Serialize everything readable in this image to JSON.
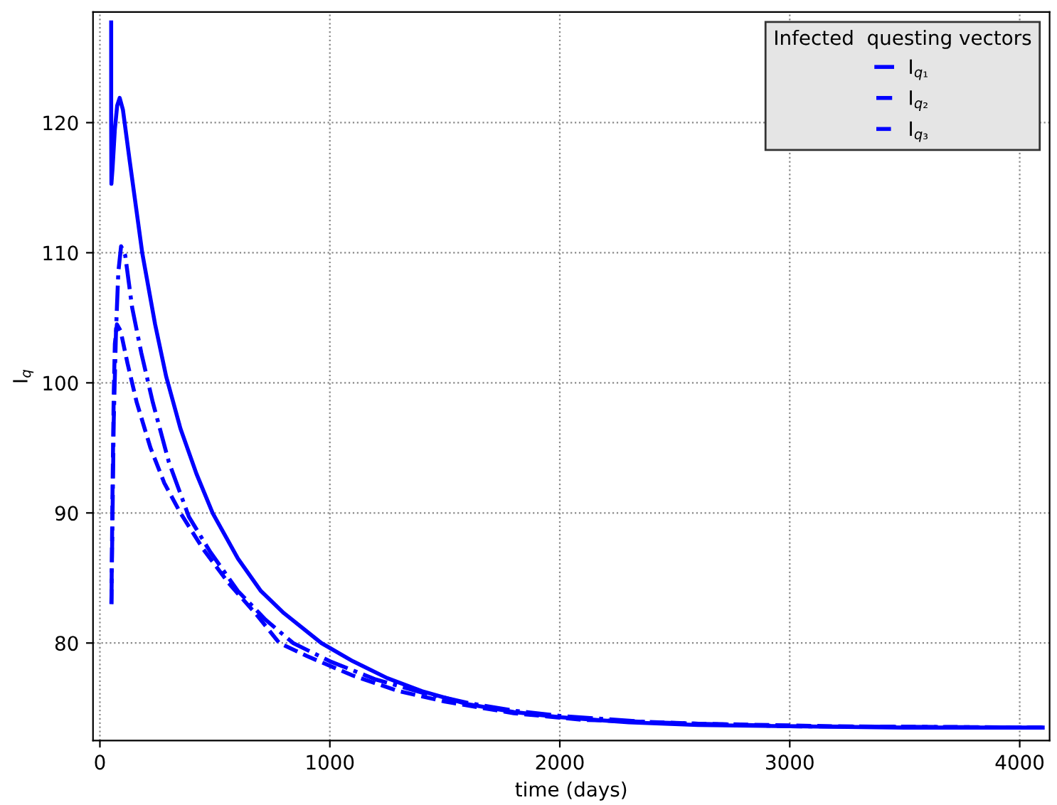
{
  "chart_data": {
    "type": "line",
    "xlabel": "time (days)",
    "ylabel": "I$_{q}$",
    "legend_title": "Infected  questing vectors",
    "legend": "top right",
    "grid": true,
    "marker": "none",
    "xlim": [
      -30,
      4130
    ],
    "xticks": [
      0,
      1000,
      2000,
      3000,
      4000
    ],
    "ylim": [
      72.5,
      128.5
    ],
    "yticks": [
      80,
      90,
      100,
      110,
      120
    ],
    "series": [
      {
        "name": "I$_{q₁}$",
        "color": "#0000ff",
        "line_style": "solid",
        "x": [
          49,
          49,
          50,
          55,
          65,
          75,
          86,
          100,
          130,
          184,
          240,
          288,
          350,
          420,
          490,
          600,
          700,
          800,
          963,
          1100,
          1250,
          1400,
          1600,
          1800,
          2000,
          2300,
          2600,
          3000,
          3500,
          4100
        ],
        "values": [
          127.7,
          120,
          115.3,
          116.5,
          119.5,
          121.3,
          121.9,
          121.0,
          117.0,
          110,
          104.5,
          100.5,
          96.5,
          93,
          90,
          86.5,
          84,
          82.3,
          80,
          78.6,
          77.3,
          76.3,
          75.3,
          74.7,
          74.3,
          73.9,
          73.7,
          73.6,
          73.5,
          73.5
        ]
      },
      {
        "name": "I$_{q₂}$",
        "color": "#0000ff",
        "line_style": "dotted",
        "x": [
          50,
          55,
          60,
          70,
          80,
          92,
          110,
          140,
          180,
          230,
          300,
          387,
          480,
          600,
          720,
          840,
          1000,
          1200,
          1400,
          1600,
          1800,
          2000,
          2400,
          3000,
          4100
        ],
        "values": [
          83,
          90,
          97,
          104,
          108.5,
          110.5,
          109.8,
          105.8,
          102.3,
          98.5,
          93.9,
          89.7,
          87.0,
          84.0,
          81.8,
          80,
          78.6,
          77.2,
          76.2,
          75.4,
          74.8,
          74.4,
          73.9,
          73.6,
          73.5
        ]
      },
      {
        "name": "I$_{q₃}$",
        "color": "#0000ff",
        "line_style": "dashed",
        "x": [
          50,
          55,
          60,
          65,
          74,
          90,
          120,
          160,
          220,
          280,
          350,
          450,
          560,
          680,
          780,
          900,
          1100,
          1300,
          1500,
          1800,
          2100,
          2600,
          3200,
          4100
        ],
        "values": [
          83,
          92,
          99,
          103,
          104.5,
          104,
          101.5,
          98.5,
          95,
          92.3,
          90,
          87.2,
          84.6,
          82.2,
          80,
          79,
          77.5,
          76.3,
          75.5,
          74.6,
          74.1,
          73.8,
          73.6,
          73.5
        ]
      }
    ]
  }
}
